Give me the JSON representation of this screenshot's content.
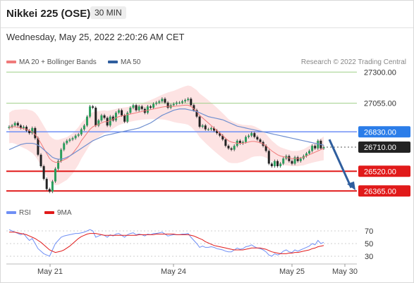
{
  "header": {
    "title": "Nikkei 225 (OSE)",
    "timeframe": "30 MIN"
  },
  "timestamp": "Wednesday, May 25, 2022 2:20:26 AM CET",
  "legend": {
    "ma20": "MA 20 + Bollinger Bands",
    "ma50": "MA 50",
    "rsi": "RSI",
    "ma9": "9MA"
  },
  "credit": "Research © 2022 Trading Central",
  "colors": {
    "ma20": "#f07a7a",
    "bands": "#fcd9d9",
    "ma50": "#6f8fd0",
    "resistance": "#9fd08a",
    "support": "#e11a1a",
    "pivot": "#6f8ff5",
    "arrow": "#2f5e9e"
  },
  "chart_data": {
    "type": "candlestick",
    "x_labels": [
      "May 21",
      "May 24",
      "May 25",
      "May 30"
    ],
    "ylim": [
      26300,
      27330
    ],
    "levels": [
      {
        "value": 27300,
        "label": "27300.00",
        "kind": "resistance"
      },
      {
        "value": 27055,
        "label": "27055.00",
        "kind": "resistance"
      },
      {
        "value": 26830,
        "label": "26830.00",
        "kind": "pivot"
      },
      {
        "value": 26710,
        "label": "26710.00",
        "kind": "last"
      },
      {
        "value": 26520,
        "label": "26520.00",
        "kind": "support"
      },
      {
        "value": 26365,
        "label": "26365.00",
        "kind": "support"
      }
    ],
    "close": [
      26870,
      26880,
      26900,
      26880,
      26860,
      26870,
      26840,
      26820,
      26860,
      26780,
      26650,
      26560,
      26460,
      26380,
      26360,
      26440,
      26540,
      26600,
      26690,
      26740,
      26760,
      26770,
      26780,
      26800,
      26810,
      26850,
      26880,
      26950,
      27030,
      27020,
      26880,
      26920,
      26960,
      26940,
      26880,
      26950,
      26920,
      26980,
      27000,
      26960,
      26910,
      26980,
      27020,
      27040,
      27000,
      27030,
      27010,
      26980,
      27030,
      27020,
      27050,
      27060,
      27070,
      27090,
      27060,
      27020,
      27040,
      27050,
      27060,
      27060,
      27070,
      27080,
      27090,
      27040,
      27000,
      26950,
      26870,
      26880,
      26850,
      26850,
      26860,
      26840,
      26820,
      26800,
      26770,
      26720,
      26700,
      26690,
      26720,
      26760,
      26740,
      26750,
      26790,
      26800,
      26820,
      26790,
      26770,
      26750,
      26720,
      26680,
      26580,
      26560,
      26600,
      26560,
      26580,
      26620,
      26640,
      26600,
      26580,
      26630,
      26600,
      26620,
      26640,
      26660,
      26680,
      26720,
      26700,
      26760,
      26700,
      26710
    ],
    "ma20": [
      26860,
      26870,
      26870,
      26865,
      26860,
      26855,
      26850,
      26840,
      26830,
      26810,
      26780,
      26740,
      26700,
      26660,
      26620,
      26600,
      26590,
      26590,
      26600,
      26610,
      26620,
      26640,
      26660,
      26690,
      26720,
      26760,
      26790,
      26820,
      26850,
      26870,
      26880,
      26890,
      26900,
      26910,
      26910,
      26920,
      26930,
      26940,
      26950,
      26955,
      26960,
      26965,
      26970,
      26975,
      26980,
      26985,
      26990,
      26995,
      27000,
      27005,
      27010,
      27015,
      27020,
      27025,
      27028,
      27030,
      27030,
      27030,
      27032,
      27035,
      27038,
      27040,
      27040,
      27030,
      27010,
      26990,
      26960,
      26940,
      26920,
      26900,
      26880,
      26860,
      26840,
      26820,
      26800,
      26780,
      26760,
      26750,
      26745,
      26740,
      26740,
      26740,
      26745,
      26750,
      26755,
      26755,
      26750,
      26745,
      26735,
      26720,
      26700,
      26680,
      26665,
      26650,
      26640,
      26635,
      26630,
      26625,
      26620,
      26620,
      26620,
      26625,
      26630,
      26640,
      26650,
      26660,
      26670,
      26680,
      26690,
      26700
    ],
    "ma50": [
      26690,
      26700,
      26710,
      26720,
      26730,
      26735,
      26740,
      26740,
      26740,
      26735,
      26725,
      26710,
      26690,
      26670,
      26650,
      26630,
      26620,
      26615,
      26615,
      26620,
      26630,
      26640,
      26655,
      26670,
      26685,
      26700,
      26715,
      26730,
      26745,
      26760,
      26770,
      26780,
      26790,
      26800,
      26805,
      26810,
      26815,
      26820,
      26825,
      26830,
      26835,
      26840,
      26845,
      26850,
      26855,
      26860,
      26870,
      26880,
      26890,
      26900,
      26915,
      26930,
      26945,
      26960,
      26970,
      26980,
      26990,
      27000,
      27005,
      27010,
      27010,
      27010,
      27005,
      27000,
      26995,
      26990,
      26980,
      26970,
      26960,
      26950,
      26945,
      26940,
      26935,
      26930,
      26925,
      26915,
      26905,
      26895,
      26885,
      26875,
      26870,
      26865,
      26860,
      26855,
      26850,
      26845,
      26840,
      26835,
      26830,
      26825,
      26820,
      26815,
      26810,
      26805,
      26800,
      26795,
      26790,
      26785,
      26780,
      26775,
      26770,
      26765,
      26760,
      26755,
      26750,
      26745,
      26740,
      26735,
      26730,
      26725
    ],
    "rsi": {
      "ticks": [
        70,
        50,
        30
      ],
      "ylim": [
        20,
        80
      ],
      "values": [
        72,
        70,
        68,
        66,
        64,
        66,
        60,
        55,
        58,
        50,
        42,
        38,
        34,
        32,
        30,
        40,
        50,
        55,
        60,
        62,
        63,
        64,
        65,
        66,
        66,
        67,
        68,
        70,
        72,
        70,
        60,
        62,
        64,
        63,
        60,
        64,
        62,
        65,
        66,
        63,
        60,
        64,
        66,
        67,
        64,
        65,
        64,
        62,
        65,
        64,
        66,
        66,
        67,
        68,
        65,
        62,
        63,
        64,
        64,
        64,
        65,
        65,
        66,
        60,
        55,
        50,
        44,
        46,
        44,
        44,
        45,
        44,
        42,
        41,
        40,
        38,
        37,
        37,
        40,
        43,
        41,
        42,
        45,
        46,
        48,
        45,
        43,
        42,
        40,
        37,
        32,
        30,
        34,
        32,
        34,
        38,
        40,
        37,
        36,
        40,
        38,
        40,
        42,
        44,
        46,
        50,
        48,
        55,
        50,
        52
      ],
      "ma9": [
        68,
        68,
        68,
        67,
        66,
        65,
        64,
        62,
        60,
        58,
        55,
        52,
        48,
        44,
        40,
        38,
        36,
        37,
        38,
        40,
        43,
        46,
        50,
        54,
        58,
        61,
        63,
        65,
        66,
        66,
        66,
        65,
        64,
        63,
        63,
        63,
        63,
        63,
        63,
        63,
        63,
        63,
        63,
        63,
        63,
        64,
        64,
        64,
        64,
        64,
        64,
        65,
        65,
        65,
        65,
        65,
        65,
        65,
        64,
        64,
        64,
        64,
        64,
        63,
        62,
        60,
        58,
        56,
        53,
        51,
        49,
        47,
        46,
        45,
        44,
        43,
        42,
        41,
        40,
        40,
        40,
        40,
        41,
        42,
        43,
        43,
        43,
        43,
        42,
        41,
        39,
        37,
        36,
        35,
        34,
        34,
        34,
        35,
        35,
        36,
        36,
        37,
        38,
        39,
        40,
        42,
        43,
        45,
        46,
        47
      ]
    }
  }
}
